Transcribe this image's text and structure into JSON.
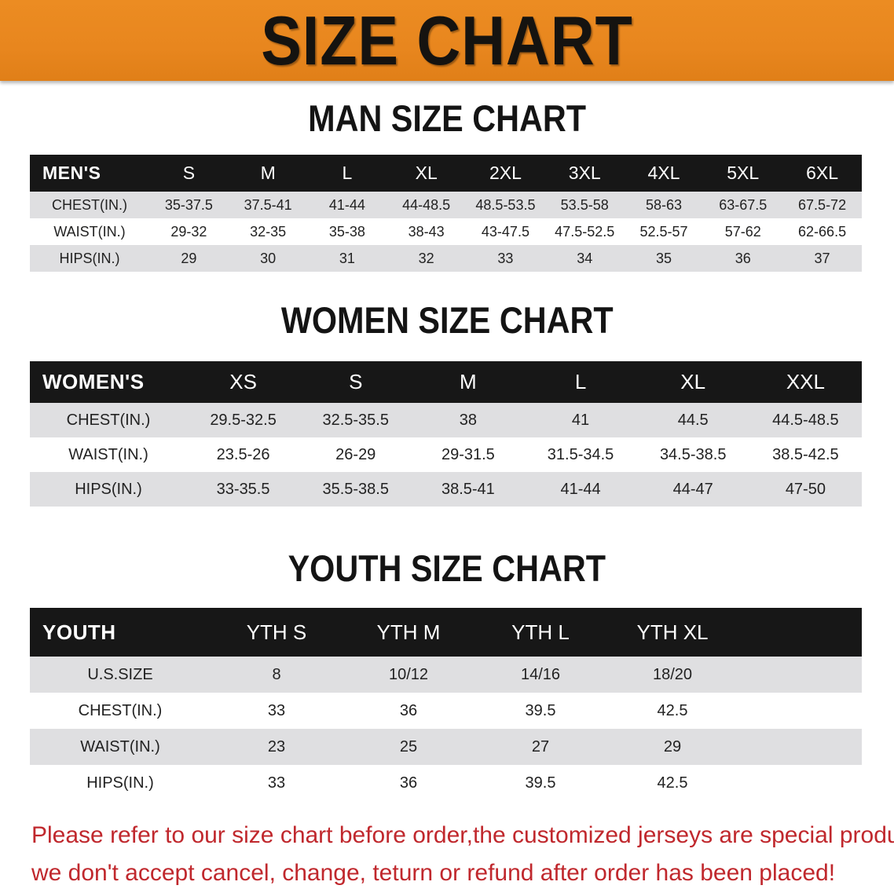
{
  "banner": {
    "title": "SIZE CHART"
  },
  "sections": [
    {
      "id": "men",
      "title": "MAN SIZE CHART",
      "header_label": "MEN'S",
      "columns": [
        "S",
        "M",
        "L",
        "XL",
        "2XL",
        "3XL",
        "4XL",
        "5XL",
        "6XL"
      ],
      "rows": [
        {
          "label": "CHEST(IN.)",
          "values": [
            "35-37.5",
            "37.5-41",
            "41-44",
            "44-48.5",
            "48.5-53.5",
            "53.5-58",
            "58-63",
            "63-67.5",
            "67.5-72"
          ]
        },
        {
          "label": "WAIST(IN.)",
          "values": [
            "29-32",
            "32-35",
            "35-38",
            "38-43",
            "43-47.5",
            "47.5-52.5",
            "52.5-57",
            "57-62",
            "62-66.5"
          ]
        },
        {
          "label": "HIPS(IN.)",
          "values": [
            "29",
            "30",
            "31",
            "32",
            "33",
            "34",
            "35",
            "36",
            "37"
          ]
        }
      ]
    },
    {
      "id": "women",
      "title": "WOMEN SIZE CHART",
      "header_label": "WOMEN'S",
      "columns": [
        "XS",
        "S",
        "M",
        "L",
        "XL",
        "XXL"
      ],
      "rows": [
        {
          "label": "CHEST(IN.)",
          "values": [
            "29.5-32.5",
            "32.5-35.5",
            "38",
            "41",
            "44.5",
            "44.5-48.5"
          ]
        },
        {
          "label": "WAIST(IN.)",
          "values": [
            "23.5-26",
            "26-29",
            "29-31.5",
            "31.5-34.5",
            "34.5-38.5",
            "38.5-42.5"
          ]
        },
        {
          "label": "HIPS(IN.)",
          "values": [
            "33-35.5",
            "35.5-38.5",
            "38.5-41",
            "41-44",
            "44-47",
            "47-50"
          ]
        }
      ]
    },
    {
      "id": "youth",
      "title": "YOUTH SIZE CHART",
      "header_label": "YOUTH",
      "columns": [
        "YTH S",
        "YTH M",
        "YTH L",
        "YTH XL"
      ],
      "rows": [
        {
          "label": "U.S.SIZE",
          "values": [
            "8",
            "10/12",
            "14/16",
            "18/20"
          ]
        },
        {
          "label": "CHEST(IN.)",
          "values": [
            "33",
            "36",
            "39.5",
            "42.5"
          ]
        },
        {
          "label": "WAIST(IN.)",
          "values": [
            "23",
            "25",
            "27",
            "29"
          ]
        },
        {
          "label": "HIPS(IN.)",
          "values": [
            "33",
            "36",
            "39.5",
            "42.5"
          ]
        }
      ]
    }
  ],
  "footer": {
    "line1": "Please refer to our size chart before order,the customized jerseys are special products,",
    "line2": "we don't accept cancel, change, teturn or refund after order has been placed!"
  },
  "colors": {
    "banner_orange": "#e8861e",
    "header_black": "#171717",
    "row_gray": "#dfdfe1",
    "notice_red": "#c0282d",
    "title_black": "#141414"
  }
}
